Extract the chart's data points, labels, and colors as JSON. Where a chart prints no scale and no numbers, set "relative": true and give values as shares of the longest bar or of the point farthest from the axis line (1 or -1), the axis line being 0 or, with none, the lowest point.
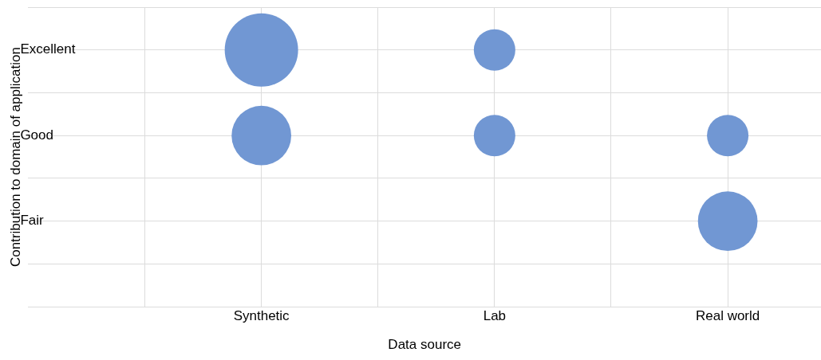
{
  "chart_data": {
    "type": "bubble",
    "xlabel": "Data source",
    "ylabel": "Contribution to domain of application",
    "categories": [
      "Synthetic",
      "Lab",
      "Real world"
    ],
    "y_categories": [
      "Excellent",
      "Good",
      "Fair"
    ],
    "relative": true,
    "grid": true,
    "series": [
      {
        "color": "#7197d3",
        "x": [
          "Synthetic",
          "Synthetic",
          "Lab",
          "Lab",
          "Real world",
          "Real world"
        ],
        "values": [
          1,
          0.5,
          1,
          0.5,
          0.5,
          0
        ],
        "sizes": [
          1,
          0.66,
          0.32,
          0.32,
          0.32,
          0.66
        ]
      }
    ]
  }
}
